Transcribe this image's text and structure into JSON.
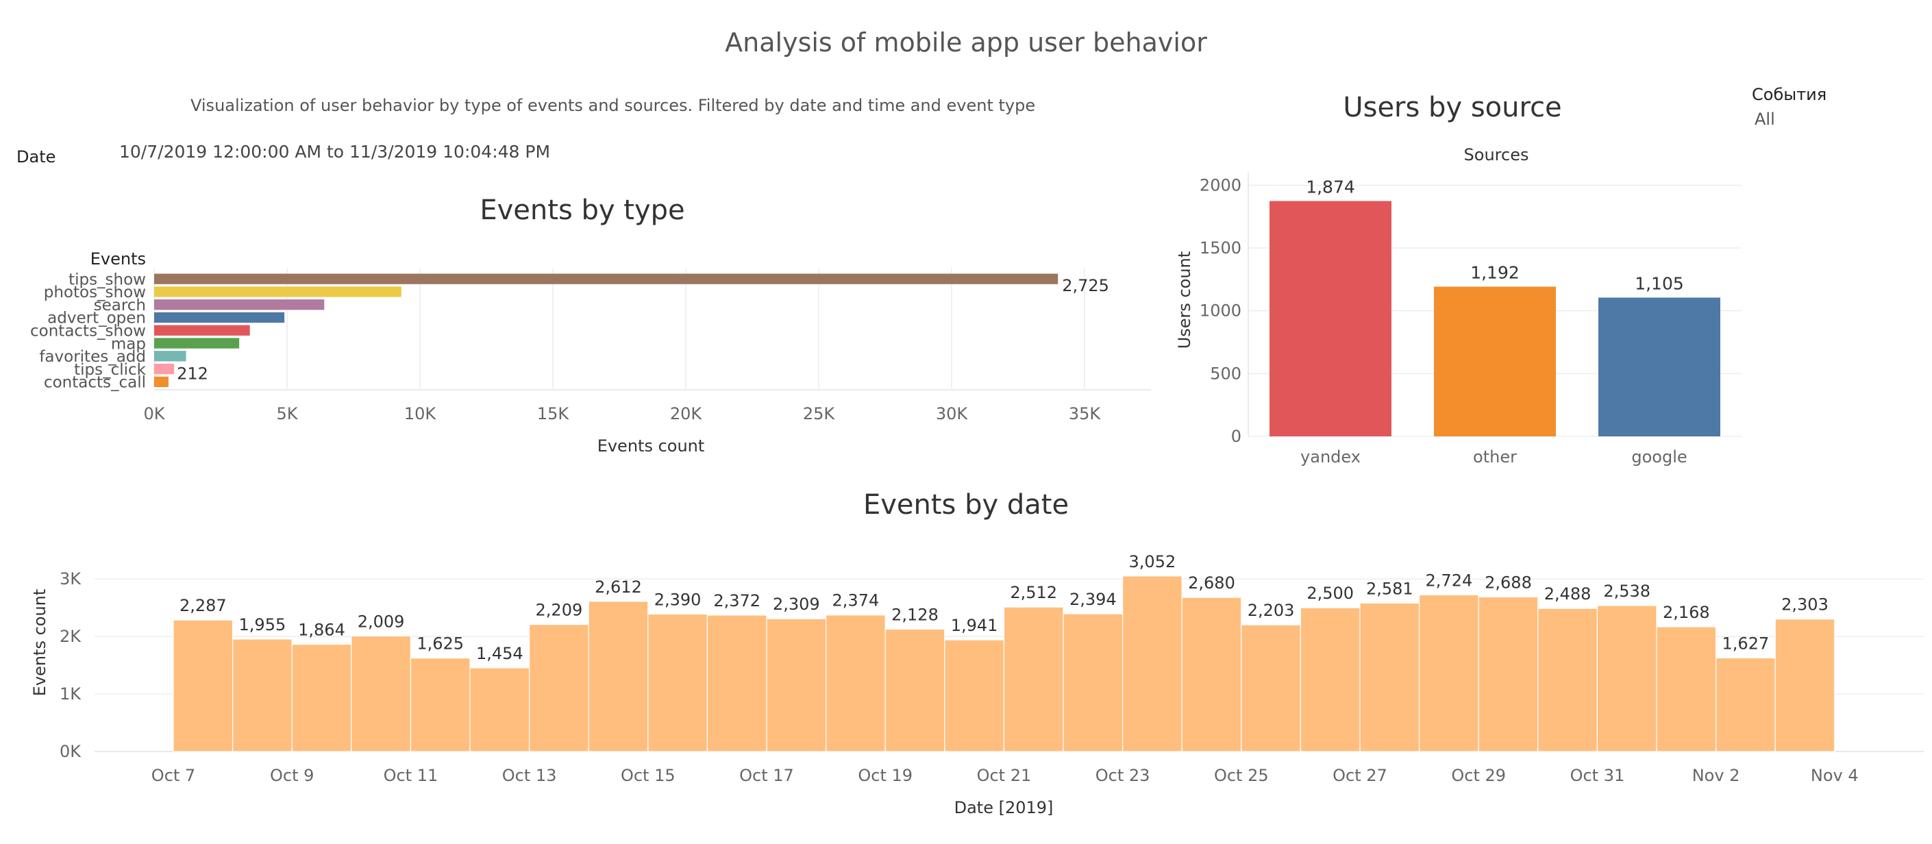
{
  "dashboard": {
    "title": "Analysis of mobile app user behavior",
    "subtitle": "Visualization of user behavior by type of events and sources. Filtered by date and time and event type",
    "date_filter": {
      "label": "Date",
      "value": "10/7/2019 12:00:00 AM to 11/3/2019 10:04:48 PM"
    },
    "event_filter": {
      "label": "События",
      "value": "All"
    }
  },
  "chart_data": [
    {
      "id": "events-by-type",
      "type": "bar",
      "orientation": "horizontal",
      "title": "Events by type",
      "category_header": "Events",
      "xlabel": "Events count",
      "categories": [
        "tips_show",
        "photos_show",
        "search",
        "advert_open",
        "contacts_show",
        "map",
        "favorites_add",
        "tips_click",
        "contacts_call"
      ],
      "values": [
        34000,
        9300,
        6400,
        4900,
        3600,
        3200,
        1200,
        750,
        540
      ],
      "value_labels": [
        "2,725",
        "",
        "",
        "",
        "",
        "",
        "",
        "212",
        ""
      ],
      "colors": [
        "#9c755f",
        "#edc948",
        "#b07aa1",
        "#4e79a7",
        "#e15759",
        "#59a14f",
        "#76b7b2",
        "#ff9da7",
        "#f28e2b"
      ],
      "xlim": [
        0,
        37500
      ],
      "xticks": [
        0,
        5000,
        10000,
        15000,
        20000,
        25000,
        30000,
        35000
      ],
      "xtick_labels": [
        "0K",
        "5K",
        "10K",
        "15K",
        "20K",
        "25K",
        "30K",
        "35K"
      ],
      "grid": true
    },
    {
      "id": "users-by-source",
      "type": "bar",
      "title": "Users by source",
      "xlabel_top": "Sources",
      "ylabel": "Users count",
      "categories": [
        "yandex",
        "other",
        "google"
      ],
      "values": [
        1874,
        1192,
        1105
      ],
      "value_labels": [
        "1,874",
        "1,192",
        "1,105"
      ],
      "colors": [
        "#e15759",
        "#f28e2b",
        "#4e79a7"
      ],
      "ylim": [
        0,
        2100
      ],
      "yticks": [
        0,
        500,
        1000,
        1500,
        2000
      ],
      "ytick_labels": [
        "0",
        "500",
        "1000",
        "1500",
        "2000"
      ],
      "grid": true
    },
    {
      "id": "events-by-date",
      "type": "bar",
      "title": "Events by date",
      "xlabel": "Date [2019]",
      "ylabel": "Events count",
      "x": [
        "2019-10-07",
        "2019-10-08",
        "2019-10-09",
        "2019-10-10",
        "2019-10-11",
        "2019-10-12",
        "2019-10-13",
        "2019-10-14",
        "2019-10-15",
        "2019-10-16",
        "2019-10-17",
        "2019-10-18",
        "2019-10-19",
        "2019-10-20",
        "2019-10-21",
        "2019-10-22",
        "2019-10-23",
        "2019-10-24",
        "2019-10-25",
        "2019-10-26",
        "2019-10-27",
        "2019-10-28",
        "2019-10-29",
        "2019-10-30",
        "2019-10-31",
        "2019-11-01",
        "2019-11-02",
        "2019-11-03"
      ],
      "values": [
        2287,
        1955,
        1864,
        2009,
        1625,
        1454,
        2209,
        2612,
        2390,
        2372,
        2309,
        2374,
        2128,
        1941,
        2512,
        2394,
        3052,
        2680,
        2203,
        2500,
        2581,
        2724,
        2688,
        2488,
        2538,
        2168,
        1627,
        2303
      ],
      "value_labels": [
        "2,287",
        "1,955",
        "1,864",
        "2,009",
        "1,625",
        "1,454",
        "2,209",
        "2,612",
        "2,390",
        "2,372",
        "2,309",
        "2,374",
        "2,128",
        "1,941",
        "2,512",
        "2,394",
        "3,052",
        "2,680",
        "2,203",
        "2,500",
        "2,581",
        "2,724",
        "2,688",
        "2,488",
        "2,538",
        "2,168",
        "1,627",
        "2,303"
      ],
      "color": "#ffbe7d",
      "xticks": [
        "2019-10-07",
        "2019-10-09",
        "2019-10-11",
        "2019-10-13",
        "2019-10-15",
        "2019-10-17",
        "2019-10-19",
        "2019-10-21",
        "2019-10-23",
        "2019-10-25",
        "2019-10-27",
        "2019-10-29",
        "2019-10-31",
        "2019-11-02",
        "2019-11-04"
      ],
      "xtick_labels": [
        "Oct 7",
        "Oct 9",
        "Oct 11",
        "Oct 13",
        "Oct 15",
        "Oct 17",
        "Oct 19",
        "Oct 21",
        "Oct 23",
        "Oct 25",
        "Oct 27",
        "Oct 29",
        "Oct 31",
        "Nov 2",
        "Nov 4"
      ],
      "ylim": [
        0,
        3300
      ],
      "yticks": [
        0,
        1000,
        2000,
        3000
      ],
      "ytick_labels": [
        "0K",
        "1K",
        "2K",
        "3K"
      ],
      "grid": true
    }
  ]
}
